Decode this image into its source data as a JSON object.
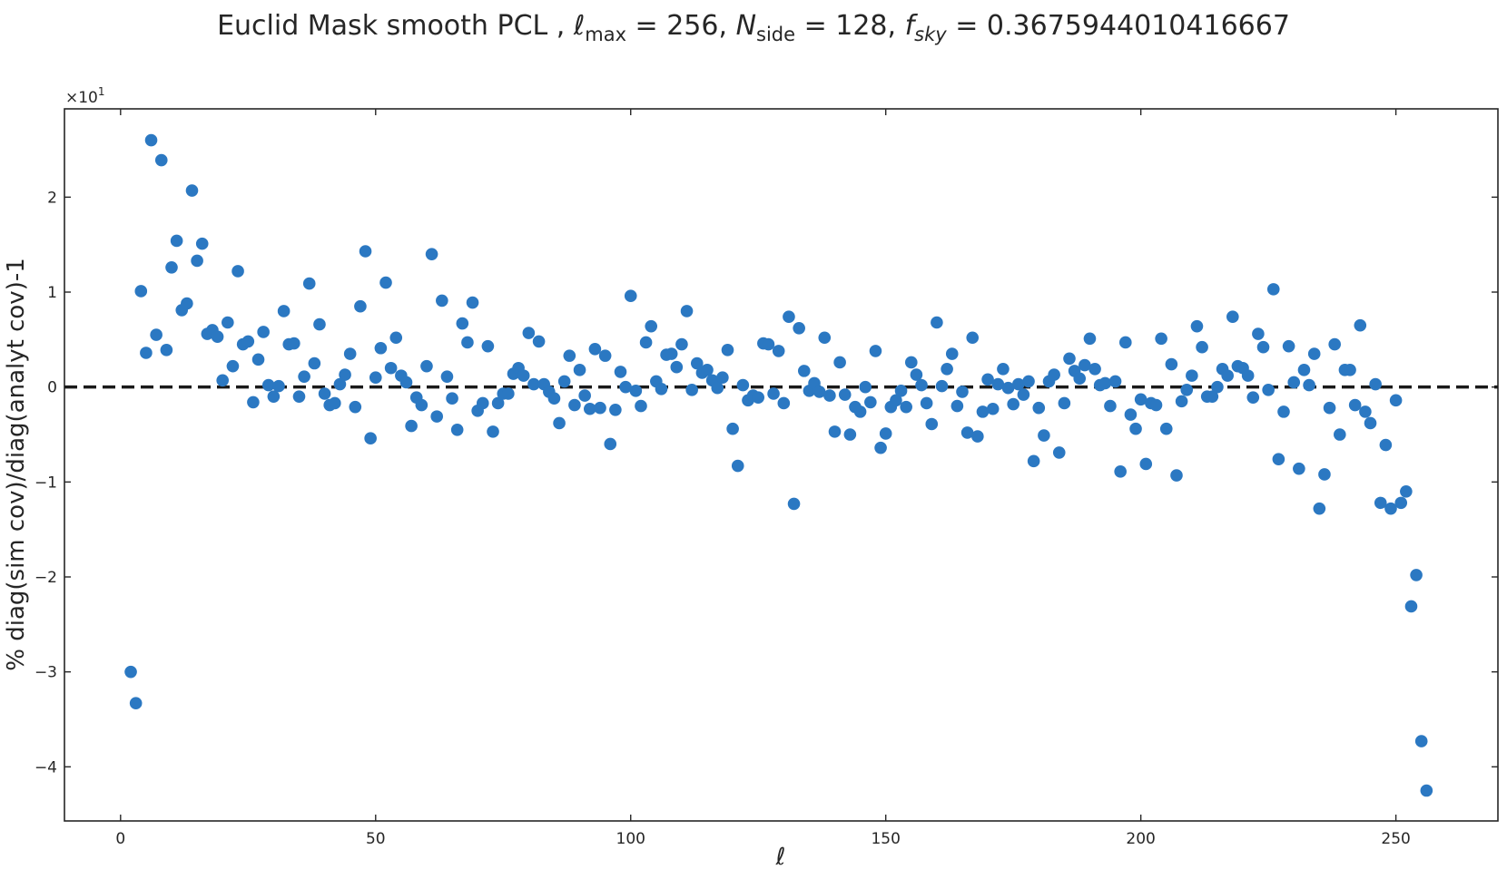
{
  "chart_data": {
    "type": "scatter",
    "title": "Euclid Mask smooth PCL ,  ℓmax = 256,  Nside = 128, fsky = 0.3675944010416667",
    "title_parts": {
      "prefix": "Euclid Mask smooth PCL ,  ",
      "lmax_symbol": "ℓ",
      "lmax_sub": "max",
      "lmax_value": " = 256,  ",
      "nside_symbol": "N",
      "nside_sub": "side",
      "nside_value": " = 128, ",
      "fsky_symbol": "f",
      "fsky_sub": "sky",
      "fsky_value": " = 0.3675944010416667"
    },
    "xlabel": "ℓ",
    "ylabel": "% diag(sim cov)/diag(analyt cov)-1",
    "y_scale_label": "×10",
    "y_scale_exponent": "1",
    "xlim": [
      -11,
      270
    ],
    "ylim": [
      -4.57,
      2.93
    ],
    "xticks": [
      0,
      50,
      100,
      150,
      200,
      250
    ],
    "yticks": [
      -4,
      -3,
      -2,
      -1,
      0,
      1,
      2
    ],
    "ytick_labels": [
      "−4",
      "−3",
      "−2",
      "−1",
      "0",
      "1",
      "2"
    ],
    "reference_line": {
      "y": 0,
      "style": "dashed",
      "color": "#1a1a1a"
    },
    "marker_color": "#2b78c2",
    "grid": false,
    "x": [
      2,
      3,
      4,
      5,
      6,
      7,
      8,
      9,
      10,
      11,
      12,
      13,
      14,
      15,
      16,
      17,
      18,
      19,
      20,
      21,
      22,
      23,
      24,
      25,
      26,
      27,
      28,
      29,
      30,
      31,
      32,
      33,
      34,
      35,
      36,
      37,
      38,
      39,
      40,
      41,
      42,
      43,
      44,
      45,
      46,
      47,
      48,
      49,
      50,
      51,
      52,
      53,
      54,
      55,
      56,
      57,
      58,
      59,
      60,
      61,
      62,
      63,
      64,
      65,
      66,
      67,
      68,
      69,
      70,
      71,
      72,
      73,
      74,
      75,
      76,
      77,
      78,
      79,
      80,
      81,
      82,
      83,
      84,
      85,
      86,
      87,
      88,
      89,
      90,
      91,
      92,
      93,
      94,
      95,
      96,
      97,
      98,
      99,
      100,
      101,
      102,
      103,
      104,
      105,
      106,
      107,
      108,
      109,
      110,
      111,
      112,
      113,
      114,
      115,
      116,
      117,
      118,
      119,
      120,
      121,
      122,
      123,
      124,
      125,
      126,
      127,
      128,
      129,
      130,
      131,
      132,
      133,
      134,
      135,
      136,
      137,
      138,
      139,
      140,
      141,
      142,
      143,
      144,
      145,
      146,
      147,
      148,
      149,
      150,
      151,
      152,
      153,
      154,
      155,
      156,
      157,
      158,
      159,
      160,
      161,
      162,
      163,
      164,
      165,
      166,
      167,
      168,
      169,
      170,
      171,
      172,
      173,
      174,
      175,
      176,
      177,
      178,
      179,
      180,
      181,
      182,
      183,
      184,
      185,
      186,
      187,
      188,
      189,
      190,
      191,
      192,
      193,
      194,
      195,
      196,
      197,
      198,
      199,
      200,
      201,
      202,
      203,
      204,
      205,
      206,
      207,
      208,
      209,
      210,
      211,
      212,
      213,
      214,
      215,
      216,
      217,
      218,
      219,
      220,
      221,
      222,
      223,
      224,
      225,
      226,
      227,
      228,
      229,
      230,
      231,
      232,
      233,
      234,
      235,
      236,
      237,
      238,
      239,
      240,
      241,
      242,
      243,
      244,
      245,
      246,
      247,
      248,
      249,
      250,
      251,
      252,
      253,
      254,
      255,
      256
    ],
    "y": [
      -3.0,
      -3.33,
      1.01,
      0.36,
      2.6,
      0.55,
      2.39,
      0.39,
      1.26,
      1.54,
      0.81,
      0.88,
      2.07,
      1.33,
      1.51,
      0.56,
      0.6,
      0.53,
      0.07,
      0.68,
      0.22,
      1.22,
      0.45,
      0.48,
      -0.16,
      0.29,
      0.58,
      0.02,
      -0.1,
      0.01,
      0.8,
      0.45,
      0.46,
      -0.1,
      0.11,
      1.09,
      0.25,
      0.66,
      -0.07,
      -0.19,
      -0.17,
      0.03,
      0.13,
      0.35,
      -0.21,
      0.85,
      1.43,
      -0.54,
      0.1,
      0.41,
      1.1,
      0.2,
      0.52,
      0.12,
      0.05,
      -0.41,
      -0.11,
      -0.19,
      0.22,
      1.4,
      -0.31,
      0.91,
      0.11,
      -0.12,
      -0.45,
      0.67,
      0.47,
      0.89,
      -0.25,
      -0.17,
      0.43,
      -0.47,
      -0.17,
      -0.07,
      -0.07,
      0.14,
      0.2,
      0.12,
      0.57,
      0.03,
      0.48,
      0.03,
      -0.05,
      -0.12,
      -0.38,
      0.06,
      0.33,
      -0.19,
      0.18,
      -0.09,
      -0.23,
      0.4,
      -0.22,
      0.33,
      -0.6,
      -0.24,
      0.16,
      0.0,
      0.96,
      -0.04,
      -0.2,
      0.47,
      0.64,
      0.06,
      -0.02,
      0.34,
      0.35,
      0.21,
      0.45,
      0.8,
      -0.03,
      0.25,
      0.15,
      0.18,
      0.07,
      -0.01,
      0.1,
      0.39,
      -0.44,
      -0.83,
      0.02,
      -0.14,
      -0.09,
      -0.11,
      0.46,
      0.45,
      -0.07,
      0.38,
      -0.17,
      0.74,
      -1.23,
      0.62,
      0.17,
      -0.04,
      0.04,
      -0.05,
      0.52,
      -0.09,
      -0.47,
      0.26,
      -0.08,
      -0.5,
      -0.21,
      -0.26,
      0.0,
      -0.16,
      0.38,
      -0.64,
      -0.49,
      -0.21,
      -0.14,
      -0.04,
      -0.21,
      0.26,
      0.13,
      0.02,
      -0.17,
      -0.39,
      0.68,
      0.01,
      0.19,
      0.35,
      -0.2,
      -0.05,
      -0.48,
      0.52,
      -0.52,
      -0.26,
      0.08,
      -0.23,
      0.03,
      0.19,
      -0.01,
      -0.18,
      0.03,
      -0.08,
      0.06,
      -0.78,
      -0.22,
      -0.51,
      0.06,
      0.13,
      -0.69,
      -0.17,
      0.3,
      0.17,
      0.09,
      0.23,
      0.51,
      0.19,
      0.02,
      0.04,
      -0.2,
      0.06,
      -0.89,
      0.47,
      -0.29,
      -0.44,
      -0.13,
      -0.81,
      -0.17,
      -0.19,
      0.51,
      -0.44,
      0.24,
      -0.93,
      -0.15,
      -0.03,
      0.12,
      0.64,
      0.42,
      -0.1,
      -0.1,
      0.0,
      0.19,
      0.12,
      0.74,
      0.22,
      0.2,
      0.12,
      -0.11,
      0.56,
      0.42,
      -0.03,
      1.03,
      -0.76,
      -0.26,
      0.43,
      0.05,
      -0.86,
      0.18,
      0.02,
      0.35,
      -1.28,
      -0.92,
      -0.22,
      0.45,
      -0.5,
      0.18,
      0.18,
      -0.19,
      0.65,
      -0.26,
      -0.38,
      0.03,
      -1.22,
      -0.61,
      -1.28,
      -0.14,
      -1.22,
      -1.1,
      -2.31,
      -1.98,
      -3.73,
      -4.25
    ]
  }
}
